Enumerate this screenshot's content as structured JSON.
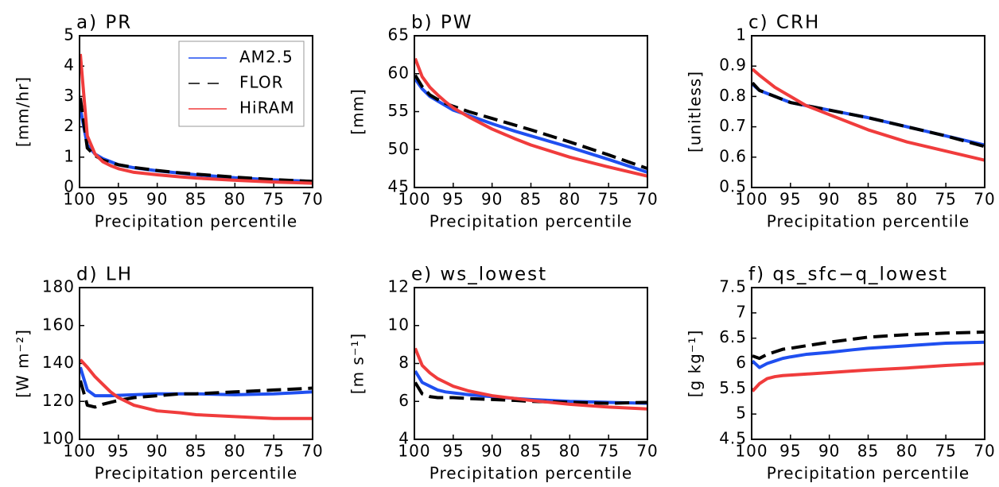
{
  "chart_data": [
    {
      "type": "line",
      "title": "a) PR",
      "x_label": "Precipitation percentile",
      "y_label": "[mm/hr]",
      "x": [
        99.9,
        99,
        98,
        97,
        96,
        95,
        93,
        90,
        87,
        85,
        80,
        75,
        70
      ],
      "xlim": [
        100,
        70
      ],
      "xticks": [
        100,
        95,
        90,
        85,
        80,
        75,
        70
      ],
      "ylim": [
        0,
        5
      ],
      "yticks": [
        0,
        1,
        2,
        3,
        4,
        5
      ],
      "legend": "top-right",
      "series": [
        {
          "name": "AM2.5",
          "color": "#1f4ff0",
          "dashed": false,
          "values": [
            2.6,
            1.4,
            1.1,
            0.95,
            0.85,
            0.75,
            0.65,
            0.55,
            0.47,
            0.42,
            0.32,
            0.25,
            0.2
          ]
        },
        {
          "name": "FLOR",
          "color": "#000000",
          "dashed": true,
          "values": [
            2.95,
            1.3,
            1.05,
            0.9,
            0.82,
            0.75,
            0.66,
            0.56,
            0.48,
            0.44,
            0.34,
            0.26,
            0.2
          ]
        },
        {
          "name": "HiRAM",
          "color": "#f03c3c",
          "dashed": false,
          "values": [
            4.4,
            1.7,
            1.1,
            0.85,
            0.72,
            0.62,
            0.5,
            0.42,
            0.35,
            0.31,
            0.24,
            0.18,
            0.14
          ]
        }
      ]
    },
    {
      "type": "line",
      "title": "b) PW",
      "x_label": "Precipitation percentile",
      "y_label": "[mm]",
      "x": [
        99.9,
        99,
        98,
        97,
        96,
        95,
        93,
        90,
        87,
        85,
        80,
        75,
        70
      ],
      "xlim": [
        100,
        70
      ],
      "xticks": [
        100,
        95,
        90,
        85,
        80,
        75,
        70
      ],
      "ylim": [
        45,
        65
      ],
      "yticks": [
        45,
        50,
        55,
        60,
        65
      ],
      "series": [
        {
          "color": "#1f4ff0",
          "dashed": false,
          "values": [
            59.3,
            58,
            57,
            56.4,
            55.8,
            55.2,
            54.5,
            53.4,
            52.4,
            51.8,
            50.3,
            48.7,
            47.0
          ]
        },
        {
          "color": "#000000",
          "dashed": true,
          "values": [
            59.8,
            58.3,
            57.2,
            56.6,
            56.1,
            55.7,
            55.0,
            54.1,
            53.2,
            52.6,
            51.0,
            49.3,
            47.5
          ]
        },
        {
          "color": "#f03c3c",
          "dashed": false,
          "values": [
            62,
            59.6,
            58.2,
            57.2,
            56.3,
            55.5,
            54.3,
            52.7,
            51.4,
            50.6,
            49,
            47.7,
            46.5
          ]
        }
      ]
    },
    {
      "type": "line",
      "title": "c) CRH",
      "x_label": "Precipitation percentile",
      "y_label": "[unitless]",
      "x": [
        99.9,
        99,
        98,
        97,
        96,
        95,
        93,
        90,
        87,
        85,
        80,
        75,
        70
      ],
      "xlim": [
        100,
        70
      ],
      "xticks": [
        100,
        95,
        90,
        85,
        80,
        75,
        70
      ],
      "ylim": [
        0.5,
        1
      ],
      "yticks": [
        0.5,
        0.6,
        0.7,
        0.8,
        0.9,
        1
      ],
      "series": [
        {
          "color": "#1f4ff0",
          "dashed": false,
          "values": [
            0.84,
            0.82,
            0.81,
            0.8,
            0.79,
            0.78,
            0.77,
            0.755,
            0.74,
            0.73,
            0.7,
            0.67,
            0.64
          ]
        },
        {
          "color": "#000000",
          "dashed": true,
          "values": [
            0.845,
            0.82,
            0.81,
            0.8,
            0.79,
            0.78,
            0.77,
            0.755,
            0.74,
            0.73,
            0.7,
            0.67,
            0.635
          ]
        },
        {
          "color": "#f03c3c",
          "dashed": false,
          "values": [
            0.89,
            0.87,
            0.85,
            0.83,
            0.815,
            0.8,
            0.77,
            0.74,
            0.71,
            0.69,
            0.65,
            0.62,
            0.59
          ]
        }
      ]
    },
    {
      "type": "line",
      "title": "d) LH",
      "x_label": "Precipitation percentile",
      "y_label": "[W m⁻²]",
      "x": [
        99.9,
        99,
        98,
        97,
        96,
        95,
        93,
        90,
        87,
        85,
        80,
        75,
        70
      ],
      "xlim": [
        100,
        70
      ],
      "xticks": [
        100,
        95,
        90,
        85,
        80,
        75,
        70
      ],
      "ylim": [
        100,
        180
      ],
      "yticks": [
        100,
        120,
        140,
        160,
        180
      ],
      "series": [
        {
          "color": "#1f4ff0",
          "dashed": false,
          "values": [
            138,
            126,
            123,
            123,
            123,
            123.2,
            123.5,
            124,
            124,
            124,
            123.5,
            124,
            125
          ]
        },
        {
          "color": "#000000",
          "dashed": true,
          "values": [
            131,
            118,
            117,
            118.5,
            119.5,
            120.5,
            122,
            123,
            124,
            124,
            125,
            126,
            127
          ]
        },
        {
          "color": "#f03c3c",
          "dashed": false,
          "values": [
            142,
            138,
            133,
            129,
            125,
            122,
            118,
            115,
            114,
            113,
            112,
            111,
            111
          ]
        }
      ]
    },
    {
      "type": "line",
      "title": "e) ws_lowest",
      "x_label": "Precipitation percentile",
      "y_label": "[m s⁻¹]",
      "x": [
        99.9,
        99,
        98,
        97,
        96,
        95,
        93,
        90,
        87,
        85,
        80,
        75,
        70
      ],
      "xlim": [
        100,
        70
      ],
      "xticks": [
        100,
        95,
        90,
        85,
        80,
        75,
        70
      ],
      "ylim": [
        4,
        12
      ],
      "yticks": [
        4,
        6,
        8,
        10,
        12
      ],
      "series": [
        {
          "color": "#1f4ff0",
          "dashed": false,
          "values": [
            7.6,
            7.0,
            6.8,
            6.6,
            6.5,
            6.45,
            6.35,
            6.25,
            6.15,
            6.1,
            6.0,
            5.95,
            5.9
          ]
        },
        {
          "color": "#000000",
          "dashed": true,
          "values": [
            7.0,
            6.4,
            6.25,
            6.2,
            6.2,
            6.2,
            6.15,
            6.1,
            6.05,
            6.0,
            5.95,
            5.9,
            5.95
          ]
        },
        {
          "color": "#f03c3c",
          "dashed": false,
          "values": [
            8.8,
            7.9,
            7.5,
            7.2,
            7.0,
            6.8,
            6.55,
            6.3,
            6.15,
            6.05,
            5.85,
            5.7,
            5.6
          ]
        }
      ]
    },
    {
      "type": "line",
      "title": "f) qs_sfc−q_lowest",
      "x_label": "Precipitation percentile",
      "y_label": "[g kg⁻¹]",
      "x": [
        99.9,
        99,
        98,
        97,
        96,
        95,
        93,
        90,
        87,
        85,
        80,
        75,
        70
      ],
      "xlim": [
        100,
        70
      ],
      "xticks": [
        100,
        95,
        90,
        85,
        80,
        75,
        70
      ],
      "ylim": [
        4.5,
        7.5
      ],
      "yticks": [
        4.5,
        5,
        5.5,
        6,
        6.5,
        7,
        7.5
      ],
      "series": [
        {
          "color": "#1f4ff0",
          "dashed": false,
          "values": [
            6.05,
            5.92,
            6.0,
            6.05,
            6.1,
            6.13,
            6.18,
            6.22,
            6.27,
            6.3,
            6.35,
            6.4,
            6.42
          ]
        },
        {
          "color": "#000000",
          "dashed": true,
          "values": [
            6.15,
            6.1,
            6.18,
            6.23,
            6.28,
            6.3,
            6.35,
            6.42,
            6.48,
            6.52,
            6.57,
            6.6,
            6.62
          ]
        },
        {
          "color": "#f03c3c",
          "dashed": false,
          "values": [
            5.45,
            5.6,
            5.7,
            5.74,
            5.76,
            5.77,
            5.79,
            5.82,
            5.85,
            5.87,
            5.91,
            5.96,
            6.0
          ]
        }
      ]
    }
  ]
}
